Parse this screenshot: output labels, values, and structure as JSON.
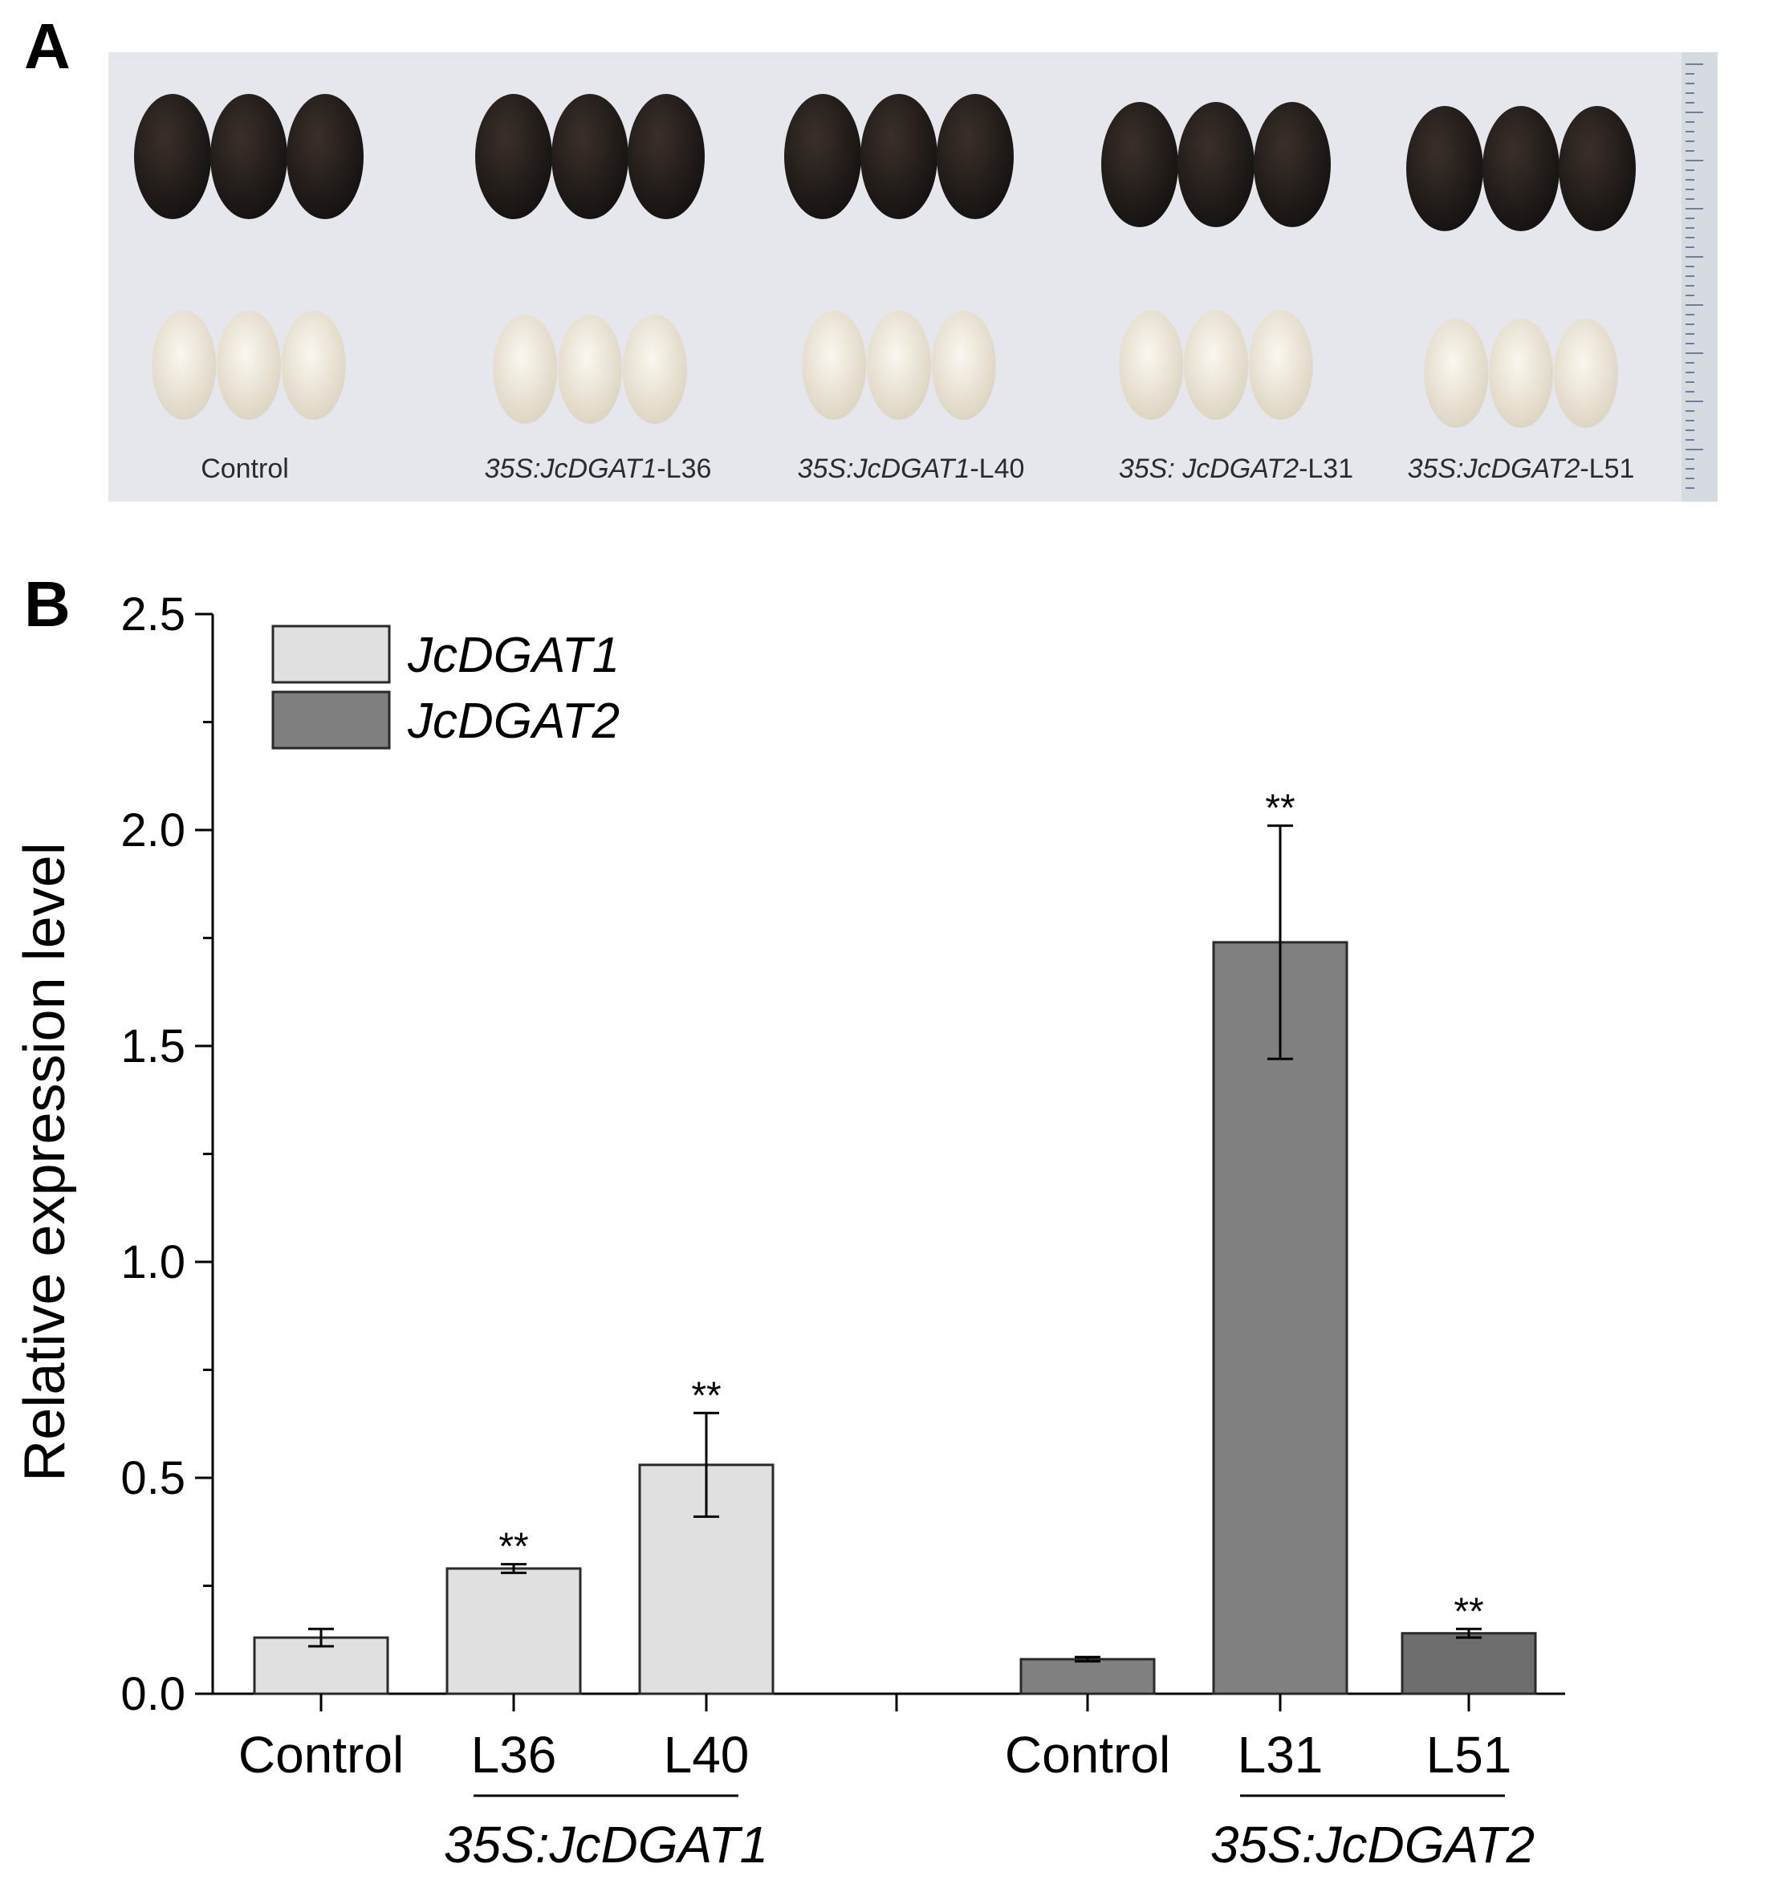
{
  "panel_a": {
    "label": "A",
    "photo_labels": [
      "Control",
      "35S:JcDGAT1-L36",
      "35S:JcDGAT1-L40",
      "35S: JcDGAT2-L31",
      "35S:JcDGAT2-L51"
    ],
    "photo_label_parts": [
      {
        "italic": "",
        "plain": "Control"
      },
      {
        "italic": "35S:JcDGAT1",
        "plain": "-L36"
      },
      {
        "italic": "35S:JcDGAT1",
        "plain": "-L40"
      },
      {
        "italic": "35S: JcDGAT2",
        "plain": "-L31"
      },
      {
        "italic": "35S:JcDGAT2",
        "plain": "-L51"
      }
    ],
    "colors": {
      "background": "#e8e8ec",
      "seed_coat": "#1f1a17",
      "kernel": "#ece6d6",
      "ruler": "#d8dde2"
    }
  },
  "panel_b": {
    "label": "B"
  },
  "chart_data": {
    "type": "bar",
    "title": "",
    "ylabel": "Relative expression level",
    "xlabel": "",
    "ylim": [
      0,
      2.5
    ],
    "yticks": [
      "0.0",
      "0.5",
      "1.0",
      "1.5",
      "2.0",
      "2.5"
    ],
    "ytick_values": [
      0,
      0.5,
      1.0,
      1.5,
      2.0,
      2.5
    ],
    "legend_position": "top-left",
    "grid": false,
    "series": [
      {
        "name": "JcDGAT1",
        "color": "#e0e0e0",
        "categories": [
          "Control",
          "L36",
          "L40"
        ],
        "values": [
          0.13,
          0.29,
          0.53
        ],
        "errors": [
          0.02,
          0.01,
          0.12
        ],
        "significance": [
          "",
          "**",
          "**"
        ]
      },
      {
        "name": "JcDGAT2",
        "color": "#7f7f7f",
        "categories": [
          "Control",
          "L31",
          "L51"
        ],
        "values": [
          0.08,
          1.74,
          0.14
        ],
        "errors": [
          0.005,
          0.27,
          0.01
        ],
        "significance": [
          "",
          "**",
          "**"
        ]
      }
    ],
    "bar_colors": [
      "#e0e0e0",
      "#e0e0e0",
      "#e0e0e0",
      "#808080",
      "#808080",
      "#6e6e6e"
    ],
    "group_labels": [
      "35S:JcDGAT1",
      "35S:JcDGAT2"
    ]
  }
}
